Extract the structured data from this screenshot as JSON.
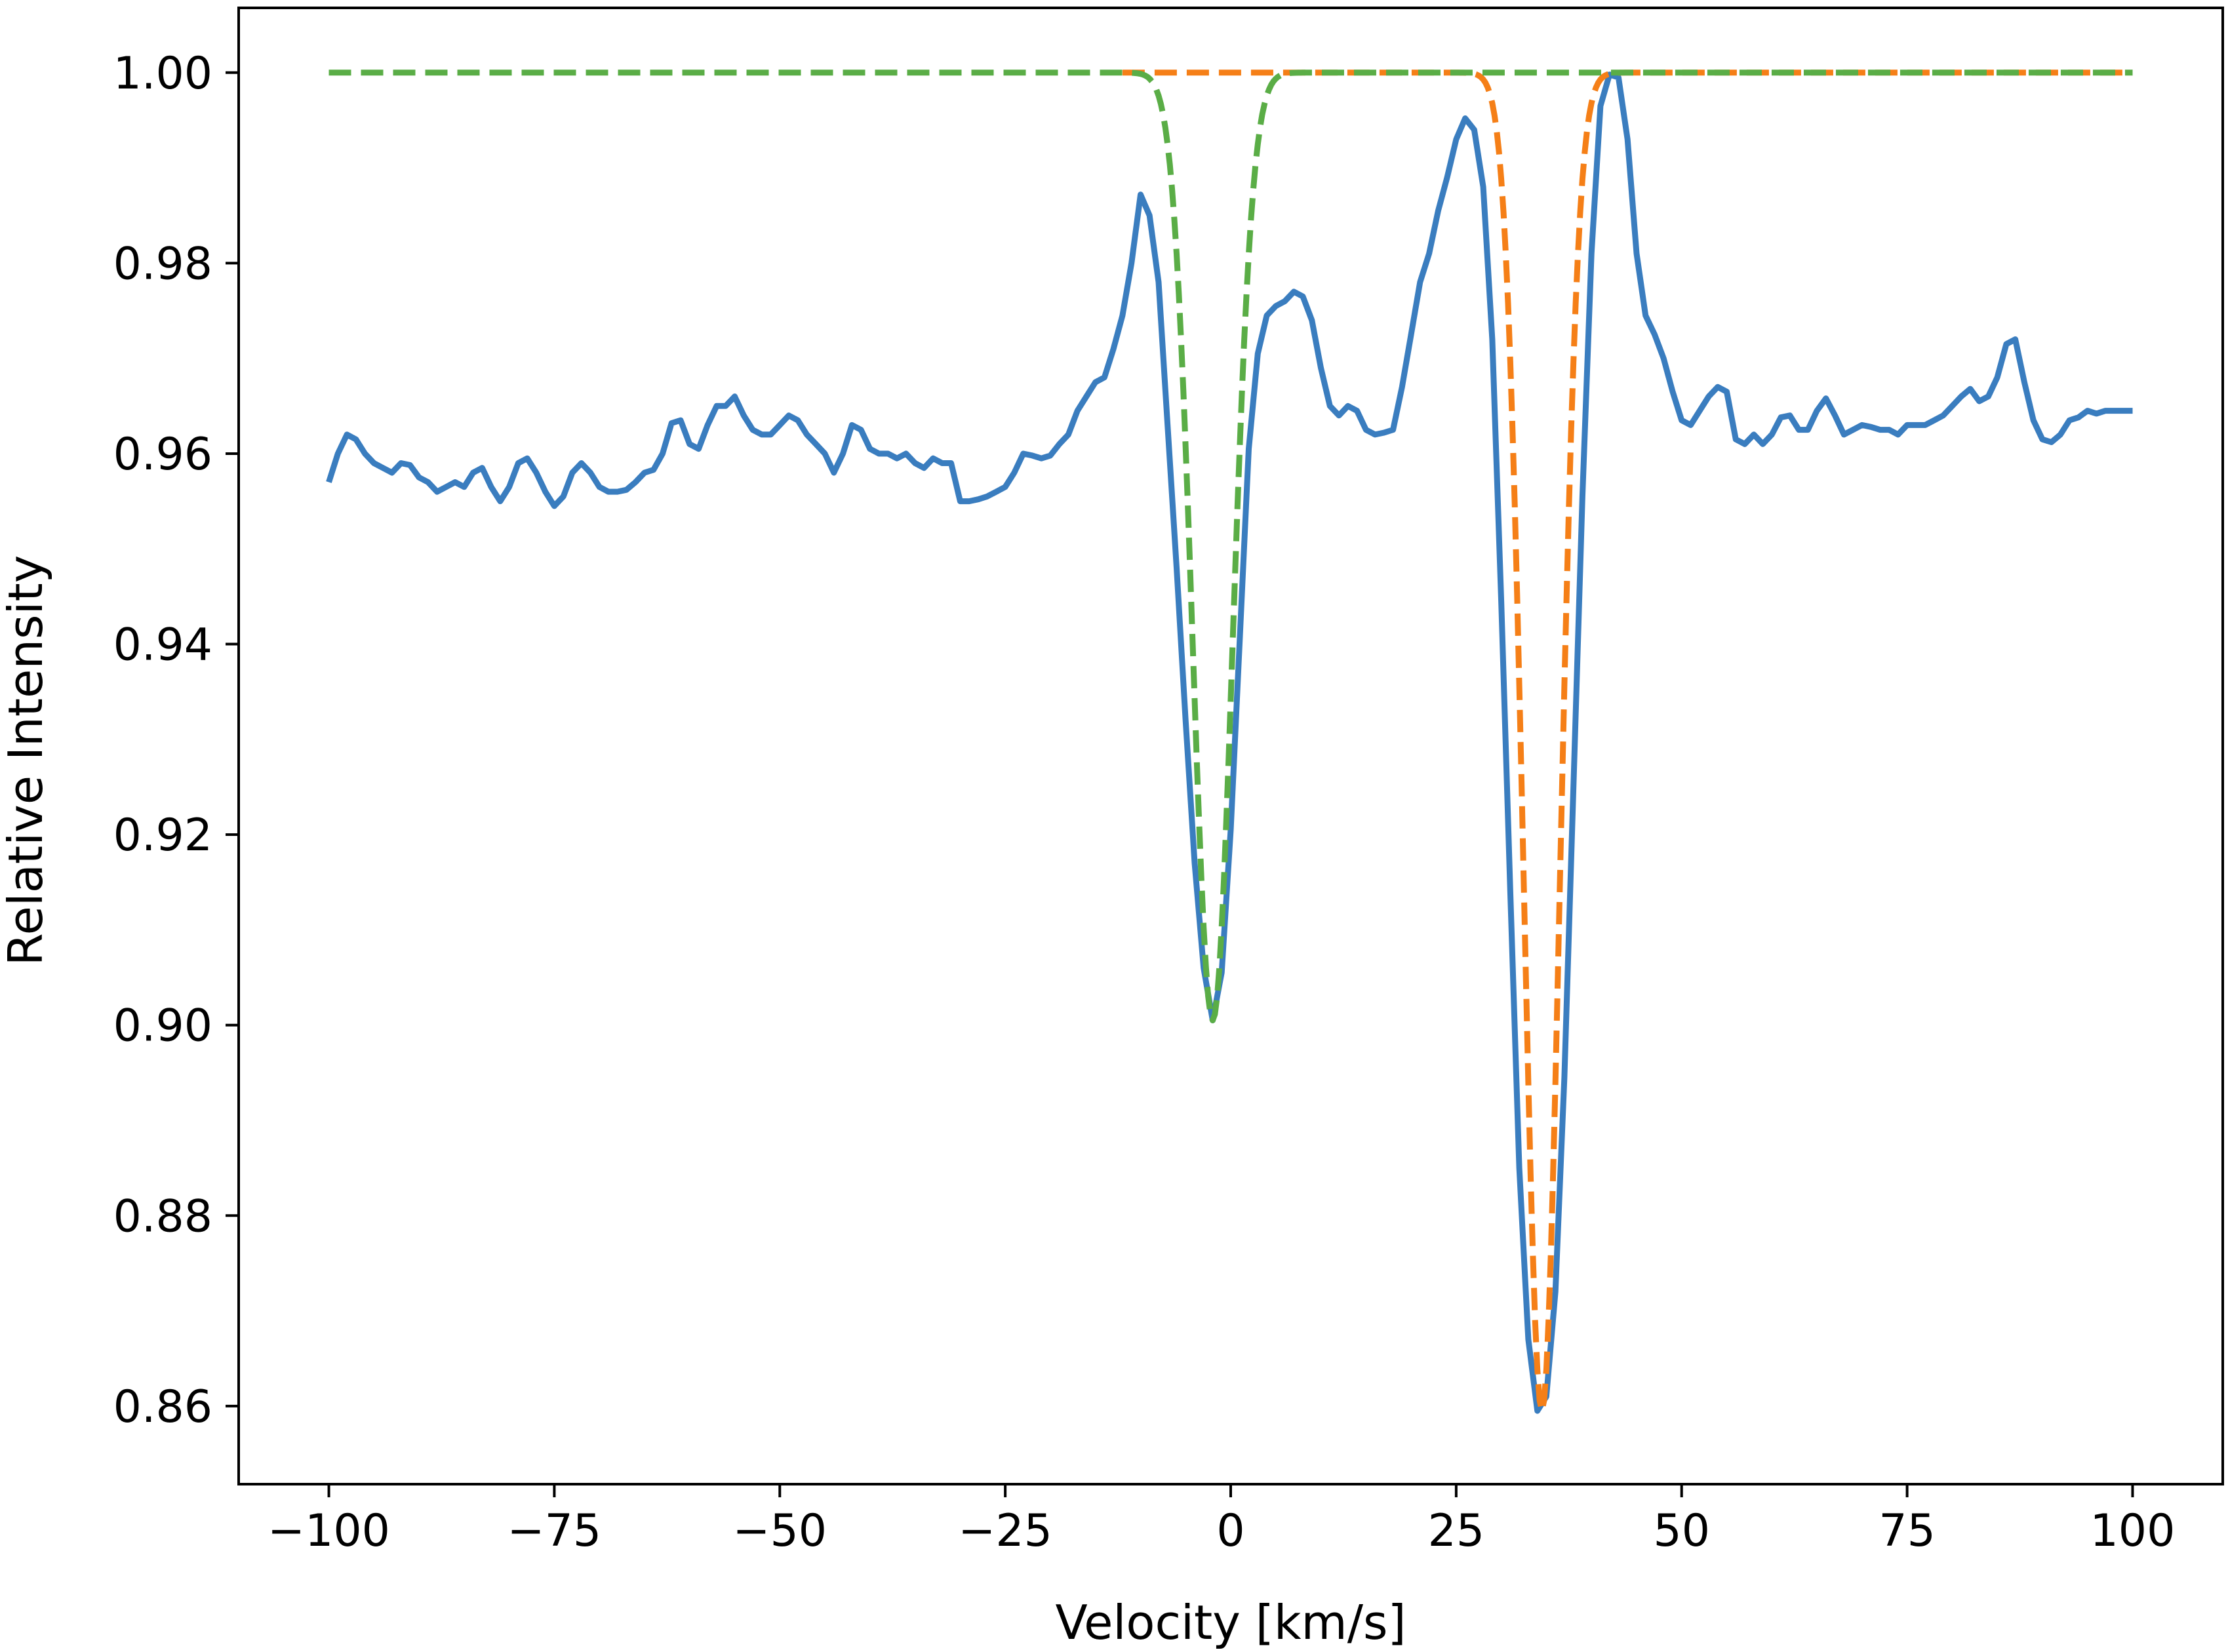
{
  "chart_data": {
    "type": "line",
    "title": "",
    "xlabel": "Velocity [km/s]",
    "ylabel": "Relative Intensity",
    "xlim": [
      -110,
      110
    ],
    "ylim": [
      0.8518,
      1.0068
    ],
    "grid": false,
    "legend": "none",
    "x_ticks": [
      {
        "value": -100,
        "label": "−100"
      },
      {
        "value": -75,
        "label": "−75"
      },
      {
        "value": -50,
        "label": "−50"
      },
      {
        "value": -25,
        "label": "−25"
      },
      {
        "value": 0,
        "label": "0"
      },
      {
        "value": 25,
        "label": "25"
      },
      {
        "value": 50,
        "label": "50"
      },
      {
        "value": 75,
        "label": "75"
      },
      {
        "value": 100,
        "label": "100"
      }
    ],
    "y_ticks": [
      {
        "value": 0.86,
        "label": "0.86"
      },
      {
        "value": 0.88,
        "label": "0.88"
      },
      {
        "value": 0.9,
        "label": "0.90"
      },
      {
        "value": 0.92,
        "label": "0.92"
      },
      {
        "value": 0.94,
        "label": "0.94"
      },
      {
        "value": 0.96,
        "label": "0.96"
      },
      {
        "value": 0.98,
        "label": "0.98"
      },
      {
        "value": 1.0,
        "label": "1.00"
      }
    ],
    "series": [
      {
        "style": "solid",
        "color": "#3a7dbf",
        "points": [
          [
            -100,
            0.957
          ],
          [
            -99,
            0.96
          ],
          [
            -98,
            0.962
          ],
          [
            -97,
            0.9615
          ],
          [
            -96,
            0.96
          ],
          [
            -95,
            0.959
          ],
          [
            -94,
            0.9585
          ],
          [
            -93,
            0.958
          ],
          [
            -92,
            0.959
          ],
          [
            -91,
            0.9588
          ],
          [
            -90,
            0.9575
          ],
          [
            -89,
            0.957
          ],
          [
            -88,
            0.956
          ],
          [
            -87,
            0.9565
          ],
          [
            -86,
            0.957
          ],
          [
            -85,
            0.9565
          ],
          [
            -84,
            0.958
          ],
          [
            -83,
            0.9585
          ],
          [
            -82,
            0.9565
          ],
          [
            -81,
            0.955
          ],
          [
            -80,
            0.9565
          ],
          [
            -79,
            0.959
          ],
          [
            -78,
            0.9595
          ],
          [
            -77,
            0.958
          ],
          [
            -76,
            0.956
          ],
          [
            -75,
            0.9545
          ],
          [
            -74,
            0.9555
          ],
          [
            -73,
            0.958
          ],
          [
            -72,
            0.959
          ],
          [
            -71,
            0.958
          ],
          [
            -70,
            0.9565
          ],
          [
            -69,
            0.956
          ],
          [
            -68,
            0.956
          ],
          [
            -67,
            0.9562
          ],
          [
            -66,
            0.957
          ],
          [
            -65,
            0.958
          ],
          [
            -64,
            0.9583
          ],
          [
            -63,
            0.96
          ],
          [
            -62,
            0.9632
          ],
          [
            -61,
            0.9635
          ],
          [
            -60,
            0.961
          ],
          [
            -59,
            0.9605
          ],
          [
            -58,
            0.963
          ],
          [
            -57,
            0.965
          ],
          [
            -56,
            0.965
          ],
          [
            -55,
            0.966
          ],
          [
            -54,
            0.964
          ],
          [
            -53,
            0.9625
          ],
          [
            -52,
            0.962
          ],
          [
            -51,
            0.962
          ],
          [
            -50,
            0.963
          ],
          [
            -49,
            0.964
          ],
          [
            -48,
            0.9635
          ],
          [
            -47,
            0.962
          ],
          [
            -46,
            0.961
          ],
          [
            -45,
            0.96
          ],
          [
            -44,
            0.958
          ],
          [
            -43,
            0.96
          ],
          [
            -42,
            0.963
          ],
          [
            -41,
            0.9625
          ],
          [
            -40,
            0.9605
          ],
          [
            -39,
            0.96
          ],
          [
            -38,
            0.96
          ],
          [
            -37,
            0.9595
          ],
          [
            -36,
            0.96
          ],
          [
            -35,
            0.959
          ],
          [
            -34,
            0.9585
          ],
          [
            -33,
            0.9595
          ],
          [
            -32,
            0.959
          ],
          [
            -31,
            0.959
          ],
          [
            -30,
            0.955
          ],
          [
            -29,
            0.955
          ],
          [
            -28,
            0.9552
          ],
          [
            -27,
            0.9555
          ],
          [
            -26,
            0.956
          ],
          [
            -25,
            0.9565
          ],
          [
            -24,
            0.958
          ],
          [
            -23,
            0.96
          ],
          [
            -22,
            0.9598
          ],
          [
            -21,
            0.9595
          ],
          [
            -20,
            0.9598
          ],
          [
            -19,
            0.961
          ],
          [
            -18,
            0.962
          ],
          [
            -17,
            0.9645
          ],
          [
            -16,
            0.966
          ],
          [
            -15,
            0.9675
          ],
          [
            -14,
            0.968
          ],
          [
            -13,
            0.971
          ],
          [
            -12,
            0.9745
          ],
          [
            -11,
            0.98
          ],
          [
            -10,
            0.9872
          ],
          [
            -9,
            0.985
          ],
          [
            -8,
            0.978
          ],
          [
            -7,
            0.963
          ],
          [
            -6,
            0.948
          ],
          [
            -5,
            0.932
          ],
          [
            -4,
            0.917
          ],
          [
            -3,
            0.906
          ],
          [
            -2,
            0.9005
          ],
          [
            -1,
            0.9055
          ],
          [
            0,
            0.9205
          ],
          [
            1,
            0.9405
          ],
          [
            2,
            0.9605
          ],
          [
            3,
            0.9705
          ],
          [
            4,
            0.9745
          ],
          [
            5,
            0.9755
          ],
          [
            6,
            0.976
          ],
          [
            7,
            0.977
          ],
          [
            8,
            0.9765
          ],
          [
            9,
            0.974
          ],
          [
            10,
            0.969
          ],
          [
            11,
            0.965
          ],
          [
            12,
            0.964
          ],
          [
            13,
            0.965
          ],
          [
            14,
            0.9645
          ],
          [
            15,
            0.9625
          ],
          [
            16,
            0.962
          ],
          [
            17,
            0.9622
          ],
          [
            18,
            0.9625
          ],
          [
            19,
            0.967
          ],
          [
            20,
            0.9725
          ],
          [
            21,
            0.978
          ],
          [
            22,
            0.981
          ],
          [
            23,
            0.9855
          ],
          [
            24,
            0.989
          ],
          [
            25,
            0.993
          ],
          [
            26,
            0.9952
          ],
          [
            27,
            0.994
          ],
          [
            28,
            0.988
          ],
          [
            29,
            0.972
          ],
          [
            30,
            0.9445
          ],
          [
            31,
            0.914
          ],
          [
            32,
            0.885
          ],
          [
            33,
            0.867
          ],
          [
            34,
            0.8595
          ],
          [
            35,
            0.861
          ],
          [
            36,
            0.872
          ],
          [
            37,
            0.8945
          ],
          [
            38,
            0.925
          ],
          [
            39,
            0.9555
          ],
          [
            40,
            0.981
          ],
          [
            41,
            0.9965
          ],
          [
            42,
            0.9998
          ],
          [
            43,
            0.9995
          ],
          [
            44,
            0.993
          ],
          [
            45,
            0.981
          ],
          [
            46,
            0.9745
          ],
          [
            47,
            0.9725
          ],
          [
            48,
            0.97
          ],
          [
            49,
            0.9665
          ],
          [
            50,
            0.9635
          ],
          [
            51,
            0.963
          ],
          [
            52,
            0.9645
          ],
          [
            53,
            0.966
          ],
          [
            54,
            0.967
          ],
          [
            55,
            0.9665
          ],
          [
            56,
            0.9615
          ],
          [
            57,
            0.961
          ],
          [
            58,
            0.962
          ],
          [
            59,
            0.961
          ],
          [
            60,
            0.962
          ],
          [
            61,
            0.9638
          ],
          [
            62,
            0.964
          ],
          [
            63,
            0.9625
          ],
          [
            64,
            0.9625
          ],
          [
            65,
            0.9645
          ],
          [
            66,
            0.9658
          ],
          [
            67,
            0.964
          ],
          [
            68,
            0.962
          ],
          [
            69,
            0.9625
          ],
          [
            70,
            0.963
          ],
          [
            71,
            0.9628
          ],
          [
            72,
            0.9625
          ],
          [
            73,
            0.9625
          ],
          [
            74,
            0.962
          ],
          [
            75,
            0.963
          ],
          [
            76,
            0.963
          ],
          [
            77,
            0.963
          ],
          [
            78,
            0.9635
          ],
          [
            79,
            0.964
          ],
          [
            80,
            0.965
          ],
          [
            81,
            0.966
          ],
          [
            82,
            0.9668
          ],
          [
            83,
            0.9655
          ],
          [
            84,
            0.966
          ],
          [
            85,
            0.968
          ],
          [
            86,
            0.9715
          ],
          [
            87,
            0.972
          ],
          [
            88,
            0.9675
          ],
          [
            89,
            0.9635
          ],
          [
            90,
            0.9615
          ],
          [
            91,
            0.9612
          ],
          [
            92,
            0.962
          ],
          [
            93,
            0.9635
          ],
          [
            94,
            0.9638
          ],
          [
            95,
            0.9645
          ],
          [
            96,
            0.9642
          ],
          [
            97,
            0.9645
          ],
          [
            98,
            0.9645
          ],
          [
            100,
            0.9645
          ]
        ]
      },
      {
        "style": "dashed",
        "color": "#5aad46",
        "model": "gaussian",
        "baseline": 1.0,
        "depth": 0.0995,
        "center": -2.0,
        "sigma": 2.2,
        "x_range": [
          -100,
          100
        ]
      },
      {
        "style": "dashed",
        "color": "#f57f17",
        "model": "gaussian",
        "baseline": 1.0,
        "depth": 0.1405,
        "center": 34.5,
        "sigma": 2.0,
        "x_range": [
          -12,
          100
        ]
      }
    ]
  }
}
